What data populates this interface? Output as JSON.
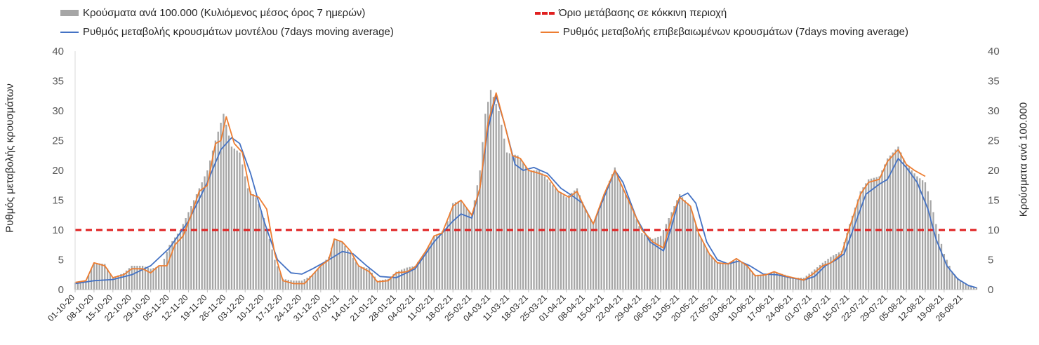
{
  "legend": {
    "bars": "Κρούσματα ανά 100.000 (Κυλιόμενος μέσος όρος 7 ημερών)",
    "threshold": "Όριο μετάβασης σε κόκκινη περιοχή",
    "model": "Ρυθμός μεταβολής κρουσμάτων μοντέλου (7days moving average)",
    "confirmed": "Ρυθμός μεταβολής επιβεβαιωμένων κρουσμάτων (7days moving average)"
  },
  "axes": {
    "left_title": "Ρυθμός μεταβολής κρουσμάτων",
    "right_title": "Κρούσματα ανά 100.000"
  },
  "colors": {
    "bars": "#a6a6a6",
    "threshold": "#e02020",
    "model": "#4472c4",
    "confirmed": "#ed7d31"
  },
  "chart_data": {
    "type": "bar",
    "ylim": [
      0,
      40
    ],
    "y_ticks": [
      0,
      5,
      10,
      15,
      20,
      25,
      30,
      35,
      40
    ],
    "x_start_date": "2020-10-01",
    "x_end_date": "2021-08-31",
    "x_ticks": [
      "01-10-20",
      "08-10-20",
      "15-10-20",
      "22-10-20",
      "29-10-20",
      "05-11-20",
      "12-11-20",
      "19-11-20",
      "26-11-20",
      "03-12-20",
      "10-12-20",
      "17-12-20",
      "24-12-20",
      "31-12-20",
      "07-01-21",
      "14-01-21",
      "21-01-21",
      "28-01-21",
      "04-02-21",
      "11-02-21",
      "18-02-21",
      "25-02-21",
      "04-03-21",
      "11-03-21",
      "18-03-21",
      "25-03-21",
      "01-04-21",
      "08-04-21",
      "15-04-21",
      "22-04-21",
      "29-04-21",
      "06-05-21",
      "13-05-21",
      "20-05-21",
      "27-05-21",
      "03-06-21",
      "10-06-21",
      "17-06-21",
      "24-06-21",
      "01-07-21",
      "08-07-21",
      "15-07-21",
      "22-07-21",
      "29-07-21",
      "05-08-21",
      "12-08-21",
      "19-08-21",
      "26-08-21"
    ],
    "threshold": 10,
    "bars_series": {
      "name": "Κρούσματα ανά 100.000 (Κυλιόμενος μέσος όρος 7 ημερών)",
      "points": [
        [
          "2020-10-01",
          1.2
        ],
        [
          "2020-10-05",
          1.5
        ],
        [
          "2020-10-08",
          4.5
        ],
        [
          "2020-10-12",
          4.3
        ],
        [
          "2020-10-15",
          2.0
        ],
        [
          "2020-10-19",
          2.8
        ],
        [
          "2020-10-22",
          4.0
        ],
        [
          "2020-10-26",
          4.0
        ],
        [
          "2020-10-29",
          3.5
        ],
        [
          "2020-11-02",
          4.0
        ],
        [
          "2020-11-05",
          7.5
        ],
        [
          "2020-11-09",
          10.0
        ],
        [
          "2020-11-12",
          13.0
        ],
        [
          "2020-11-16",
          17.0
        ],
        [
          "2020-11-19",
          20.0
        ],
        [
          "2020-11-22",
          25.0
        ],
        [
          "2020-11-25",
          29.5
        ],
        [
          "2020-11-28",
          24.0
        ],
        [
          "2020-12-01",
          23.0
        ],
        [
          "2020-12-04",
          17.0
        ],
        [
          "2020-12-07",
          15.5
        ],
        [
          "2020-12-10",
          12.0
        ],
        [
          "2020-12-14",
          5.0
        ],
        [
          "2020-12-17",
          1.8
        ],
        [
          "2020-12-21",
          1.5
        ],
        [
          "2020-12-24",
          1.5
        ],
        [
          "2020-12-28",
          2.5
        ],
        [
          "2020-12-31",
          4.0
        ],
        [
          "2021-01-03",
          5.5
        ],
        [
          "2021-01-05",
          8.5
        ],
        [
          "2021-01-08",
          8.0
        ],
        [
          "2021-01-11",
          6.0
        ],
        [
          "2021-01-14",
          4.0
        ],
        [
          "2021-01-18",
          3.5
        ],
        [
          "2021-01-21",
          1.5
        ],
        [
          "2021-01-25",
          1.8
        ],
        [
          "2021-01-28",
          3.0
        ],
        [
          "2021-02-01",
          3.7
        ],
        [
          "2021-02-04",
          4.0
        ],
        [
          "2021-02-08",
          6.5
        ],
        [
          "2021-02-11",
          9.0
        ],
        [
          "2021-02-15",
          10.0
        ],
        [
          "2021-02-18",
          14.5
        ],
        [
          "2021-02-21",
          15.0
        ],
        [
          "2021-02-25",
          12.5
        ],
        [
          "2021-02-28",
          20.0
        ],
        [
          "2021-03-02",
          29.5
        ],
        [
          "2021-03-04",
          33.5
        ],
        [
          "2021-03-07",
          30.0
        ],
        [
          "2021-03-10",
          23.0
        ],
        [
          "2021-03-14",
          22.5
        ],
        [
          "2021-03-18",
          20.0
        ],
        [
          "2021-03-22",
          20.0
        ],
        [
          "2021-03-25",
          18.5
        ],
        [
          "2021-03-29",
          16.5
        ],
        [
          "2021-04-01",
          15.5
        ],
        [
          "2021-04-05",
          17.0
        ],
        [
          "2021-04-08",
          13.5
        ],
        [
          "2021-04-11",
          11.0
        ],
        [
          "2021-04-15",
          16.0
        ],
        [
          "2021-04-19",
          20.5
        ],
        [
          "2021-04-22",
          17.0
        ],
        [
          "2021-04-26",
          13.0
        ],
        [
          "2021-04-29",
          9.5
        ],
        [
          "2021-05-03",
          8.5
        ],
        [
          "2021-05-06",
          9.0
        ],
        [
          "2021-05-10",
          13.0
        ],
        [
          "2021-05-13",
          16.0
        ],
        [
          "2021-05-17",
          14.0
        ],
        [
          "2021-05-20",
          9.5
        ],
        [
          "2021-05-24",
          6.0
        ],
        [
          "2021-05-27",
          4.5
        ],
        [
          "2021-05-31",
          4.5
        ],
        [
          "2021-06-03",
          5.0
        ],
        [
          "2021-06-07",
          4.0
        ],
        [
          "2021-06-10",
          2.5
        ],
        [
          "2021-06-14",
          2.5
        ],
        [
          "2021-06-17",
          3.0
        ],
        [
          "2021-06-21",
          2.5
        ],
        [
          "2021-06-24",
          2.0
        ],
        [
          "2021-06-28",
          2.0
        ],
        [
          "2021-07-01",
          3.0
        ],
        [
          "2021-07-05",
          4.5
        ],
        [
          "2021-07-08",
          5.5
        ],
        [
          "2021-07-12",
          6.5
        ],
        [
          "2021-07-15",
          11.0
        ],
        [
          "2021-07-19",
          16.5
        ],
        [
          "2021-07-22",
          18.5
        ],
        [
          "2021-07-26",
          19.0
        ],
        [
          "2021-07-29",
          22.0
        ],
        [
          "2021-08-02",
          24.0
        ],
        [
          "2021-08-05",
          21.0
        ],
        [
          "2021-08-09",
          19.0
        ],
        [
          "2021-08-12",
          18.0
        ],
        [
          "2021-08-14",
          15.0
        ],
        [
          "2021-08-16",
          11.0
        ],
        [
          "2021-08-19",
          6.0
        ],
        [
          "2021-08-22",
          3.0
        ],
        [
          "2021-08-25",
          1.5
        ],
        [
          "2021-08-28",
          0.8
        ],
        [
          "2021-08-31",
          0.4
        ]
      ]
    },
    "series": [
      {
        "name": "Ρυθμός μεταβολής κρουσμάτων μοντέλου (7days moving average)",
        "points": [
          [
            "2020-10-01",
            1.0
          ],
          [
            "2020-10-08",
            1.5
          ],
          [
            "2020-10-15",
            1.7
          ],
          [
            "2020-10-22",
            2.5
          ],
          [
            "2020-10-29",
            4.0
          ],
          [
            "2020-11-05",
            7.0
          ],
          [
            "2020-11-12",
            11.5
          ],
          [
            "2020-11-19",
            18.0
          ],
          [
            "2020-11-24",
            23.5
          ],
          [
            "2020-11-28",
            25.5
          ],
          [
            "2020-12-01",
            24.5
          ],
          [
            "2020-12-05",
            19.5
          ],
          [
            "2020-12-10",
            11.5
          ],
          [
            "2020-12-15",
            5.0
          ],
          [
            "2020-12-20",
            2.8
          ],
          [
            "2020-12-24",
            2.6
          ],
          [
            "2020-12-28",
            3.5
          ],
          [
            "2021-01-03",
            5.0
          ],
          [
            "2021-01-08",
            6.4
          ],
          [
            "2021-01-12",
            6.0
          ],
          [
            "2021-01-17",
            4.0
          ],
          [
            "2021-01-22",
            2.2
          ],
          [
            "2021-01-28",
            2.0
          ],
          [
            "2021-02-04",
            3.5
          ],
          [
            "2021-02-11",
            8.0
          ],
          [
            "2021-02-18",
            11.5
          ],
          [
            "2021-02-21",
            12.7
          ],
          [
            "2021-02-25",
            12.0
          ],
          [
            "2021-02-28",
            17.0
          ],
          [
            "2021-03-03",
            27.0
          ],
          [
            "2021-03-06",
            32.5
          ],
          [
            "2021-03-09",
            28.0
          ],
          [
            "2021-03-13",
            21.0
          ],
          [
            "2021-03-16",
            20.0
          ],
          [
            "2021-03-20",
            20.5
          ],
          [
            "2021-03-25",
            19.5
          ],
          [
            "2021-03-30",
            17.0
          ],
          [
            "2021-04-03",
            15.8
          ],
          [
            "2021-04-07",
            14.5
          ],
          [
            "2021-04-11",
            11.0
          ],
          [
            "2021-04-15",
            15.5
          ],
          [
            "2021-04-19",
            20.0
          ],
          [
            "2021-04-22",
            18.0
          ],
          [
            "2021-04-27",
            12.0
          ],
          [
            "2021-05-02",
            8.0
          ],
          [
            "2021-05-07",
            6.5
          ],
          [
            "2021-05-10",
            10.5
          ],
          [
            "2021-05-13",
            15.5
          ],
          [
            "2021-05-16",
            16.2
          ],
          [
            "2021-05-19",
            14.5
          ],
          [
            "2021-05-23",
            8.0
          ],
          [
            "2021-05-27",
            5.0
          ],
          [
            "2021-05-31",
            4.3
          ],
          [
            "2021-06-04",
            4.8
          ],
          [
            "2021-06-08",
            4.0
          ],
          [
            "2021-06-13",
            2.6
          ],
          [
            "2021-06-18",
            2.5
          ],
          [
            "2021-06-23",
            2.0
          ],
          [
            "2021-06-28",
            1.6
          ],
          [
            "2021-07-02",
            2.2
          ],
          [
            "2021-07-06",
            4.0
          ],
          [
            "2021-07-10",
            5.0
          ],
          [
            "2021-07-13",
            6.0
          ],
          [
            "2021-07-17",
            11.0
          ],
          [
            "2021-07-21",
            16.0
          ],
          [
            "2021-07-26",
            17.7
          ],
          [
            "2021-07-29",
            18.5
          ],
          [
            "2021-08-02",
            22.0
          ],
          [
            "2021-08-05",
            20.5
          ],
          [
            "2021-08-09",
            18.0
          ],
          [
            "2021-08-13",
            13.5
          ],
          [
            "2021-08-16",
            8.5
          ],
          [
            "2021-08-20",
            4.0
          ],
          [
            "2021-08-24",
            1.8
          ],
          [
            "2021-08-28",
            0.7
          ],
          [
            "2021-08-31",
            0.3
          ]
        ]
      },
      {
        "name": "Ρυθμός μεταβολής επιβεβαιωμένων κρουσμάτων (7days moving average)",
        "points": [
          [
            "2020-10-01",
            1.2
          ],
          [
            "2020-10-05",
            1.5
          ],
          [
            "2020-10-08",
            4.5
          ],
          [
            "2020-10-12",
            4.0
          ],
          [
            "2020-10-15",
            2.0
          ],
          [
            "2020-10-19",
            2.5
          ],
          [
            "2020-10-22",
            3.5
          ],
          [
            "2020-10-26",
            3.5
          ],
          [
            "2020-10-29",
            2.8
          ],
          [
            "2020-11-01",
            4.0
          ],
          [
            "2020-11-04",
            4.0
          ],
          [
            "2020-11-07",
            7.5
          ],
          [
            "2020-11-10",
            9.0
          ],
          [
            "2020-11-13",
            12.5
          ],
          [
            "2020-11-16",
            16.5
          ],
          [
            "2020-11-19",
            17.5
          ],
          [
            "2020-11-22",
            24.5
          ],
          [
            "2020-11-24",
            25.0
          ],
          [
            "2020-11-26",
            29.0
          ],
          [
            "2020-11-29",
            24.5
          ],
          [
            "2020-12-02",
            23.0
          ],
          [
            "2020-12-05",
            16.0
          ],
          [
            "2020-12-08",
            15.5
          ],
          [
            "2020-12-11",
            13.5
          ],
          [
            "2020-12-14",
            6.0
          ],
          [
            "2020-12-17",
            1.5
          ],
          [
            "2020-12-21",
            1.0
          ],
          [
            "2020-12-25",
            1.0
          ],
          [
            "2020-12-28",
            2.5
          ],
          [
            "2020-12-31",
            4.0
          ],
          [
            "2021-01-03",
            5.0
          ],
          [
            "2021-01-05",
            8.5
          ],
          [
            "2021-01-08",
            8.0
          ],
          [
            "2021-01-11",
            6.5
          ],
          [
            "2021-01-14",
            4.0
          ],
          [
            "2021-01-18",
            3.0
          ],
          [
            "2021-01-21",
            1.3
          ],
          [
            "2021-01-25",
            1.5
          ],
          [
            "2021-01-28",
            2.8
          ],
          [
            "2021-02-01",
            3.0
          ],
          [
            "2021-02-04",
            3.8
          ],
          [
            "2021-02-08",
            6.5
          ],
          [
            "2021-02-11",
            9.0
          ],
          [
            "2021-02-14",
            9.5
          ],
          [
            "2021-02-18",
            14.0
          ],
          [
            "2021-02-21",
            15.0
          ],
          [
            "2021-02-25",
            12.5
          ],
          [
            "2021-02-28",
            17.0
          ],
          [
            "2021-03-03",
            28.0
          ],
          [
            "2021-03-06",
            33.0
          ],
          [
            "2021-03-09",
            28.0
          ],
          [
            "2021-03-12",
            22.5
          ],
          [
            "2021-03-15",
            22.0
          ],
          [
            "2021-03-18",
            20.0
          ],
          [
            "2021-03-22",
            19.5
          ],
          [
            "2021-03-25",
            19.0
          ],
          [
            "2021-03-29",
            16.5
          ],
          [
            "2021-04-02",
            15.5
          ],
          [
            "2021-04-05",
            16.5
          ],
          [
            "2021-04-08",
            13.5
          ],
          [
            "2021-04-11",
            11.0
          ],
          [
            "2021-04-15",
            16.0
          ],
          [
            "2021-04-19",
            20.0
          ],
          [
            "2021-04-22",
            17.0
          ],
          [
            "2021-04-26",
            13.0
          ],
          [
            "2021-04-29",
            10.0
          ],
          [
            "2021-05-03",
            8.0
          ],
          [
            "2021-05-07",
            7.0
          ],
          [
            "2021-05-10",
            12.0
          ],
          [
            "2021-05-13",
            15.5
          ],
          [
            "2021-05-17",
            14.0
          ],
          [
            "2021-05-20",
            9.5
          ],
          [
            "2021-05-24",
            6.0
          ],
          [
            "2021-05-27",
            4.5
          ],
          [
            "2021-05-31",
            4.3
          ],
          [
            "2021-06-03",
            5.2
          ],
          [
            "2021-06-07",
            4.0
          ],
          [
            "2021-06-10",
            2.3
          ],
          [
            "2021-06-14",
            2.5
          ],
          [
            "2021-06-17",
            3.0
          ],
          [
            "2021-06-21",
            2.3
          ],
          [
            "2021-06-24",
            2.0
          ],
          [
            "2021-06-28",
            1.6
          ],
          [
            "2021-07-01",
            2.5
          ],
          [
            "2021-07-05",
            4.0
          ],
          [
            "2021-07-08",
            4.5
          ],
          [
            "2021-07-12",
            6.0
          ],
          [
            "2021-07-15",
            10.5
          ],
          [
            "2021-07-19",
            16.0
          ],
          [
            "2021-07-22",
            18.0
          ],
          [
            "2021-07-26",
            18.5
          ],
          [
            "2021-07-29",
            21.5
          ],
          [
            "2021-08-02",
            23.5
          ],
          [
            "2021-08-05",
            21.0
          ],
          [
            "2021-08-08",
            20.0
          ],
          [
            "2021-08-12",
            19.0
          ]
        ]
      }
    ]
  }
}
